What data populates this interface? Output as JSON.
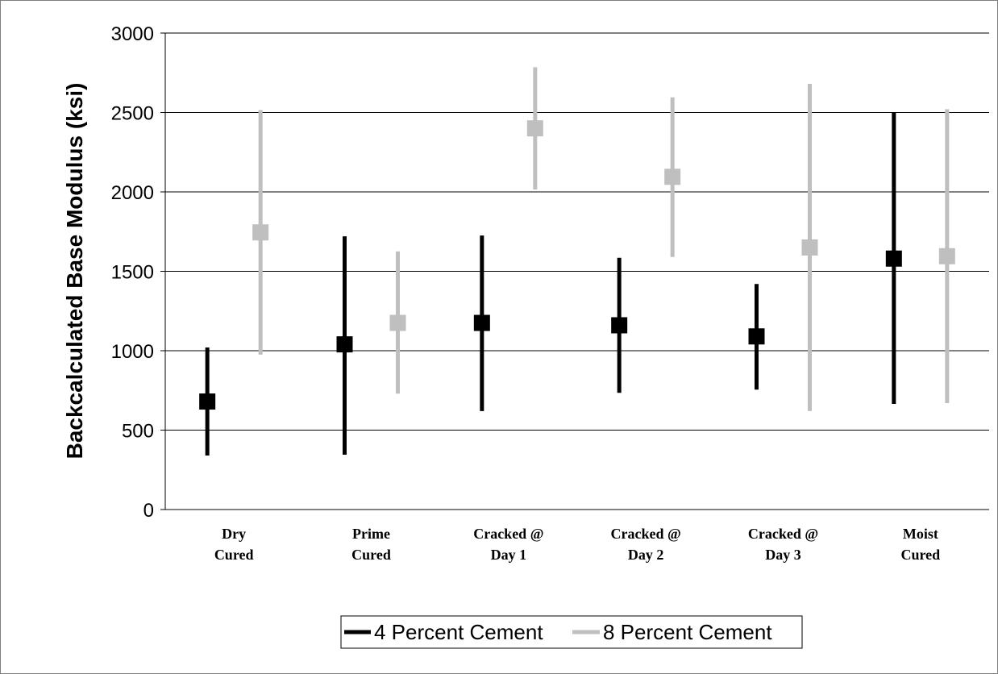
{
  "chart_data": {
    "type": "scatter",
    "title": "",
    "xlabel": "",
    "ylabel": "Backcalculated Base Modulus (ksi)",
    "ylim": [
      0,
      3000
    ],
    "yticks": [
      0,
      500,
      1000,
      1500,
      2000,
      2500,
      3000
    ],
    "grid": true,
    "legend_position": "bottom",
    "categories": [
      [
        "Dry",
        "Cured"
      ],
      [
        "Prime",
        "Cured"
      ],
      [
        "Cracked @",
        "Day 1"
      ],
      [
        "Cracked @",
        "Day 2"
      ],
      [
        "Cracked @",
        "Day 3"
      ],
      [
        "Moist",
        "Cured"
      ]
    ],
    "series": [
      {
        "name": "4 Percent Cement",
        "color": "#000000",
        "marker": "square",
        "values": [
          680,
          1040,
          1175,
          1160,
          1090,
          1580
        ],
        "min": [
          340,
          345,
          620,
          735,
          755,
          665
        ],
        "max": [
          1020,
          1720,
          1725,
          1585,
          1420,
          2500
        ]
      },
      {
        "name": "8 Percent Cement",
        "color": "#bfbfbf",
        "marker": "square",
        "values": [
          1745,
          1175,
          2400,
          2095,
          1650,
          1595
        ],
        "min": [
          975,
          730,
          2015,
          1590,
          620,
          670
        ],
        "max": [
          2515,
          1625,
          2785,
          2595,
          2680,
          2520
        ]
      }
    ]
  }
}
